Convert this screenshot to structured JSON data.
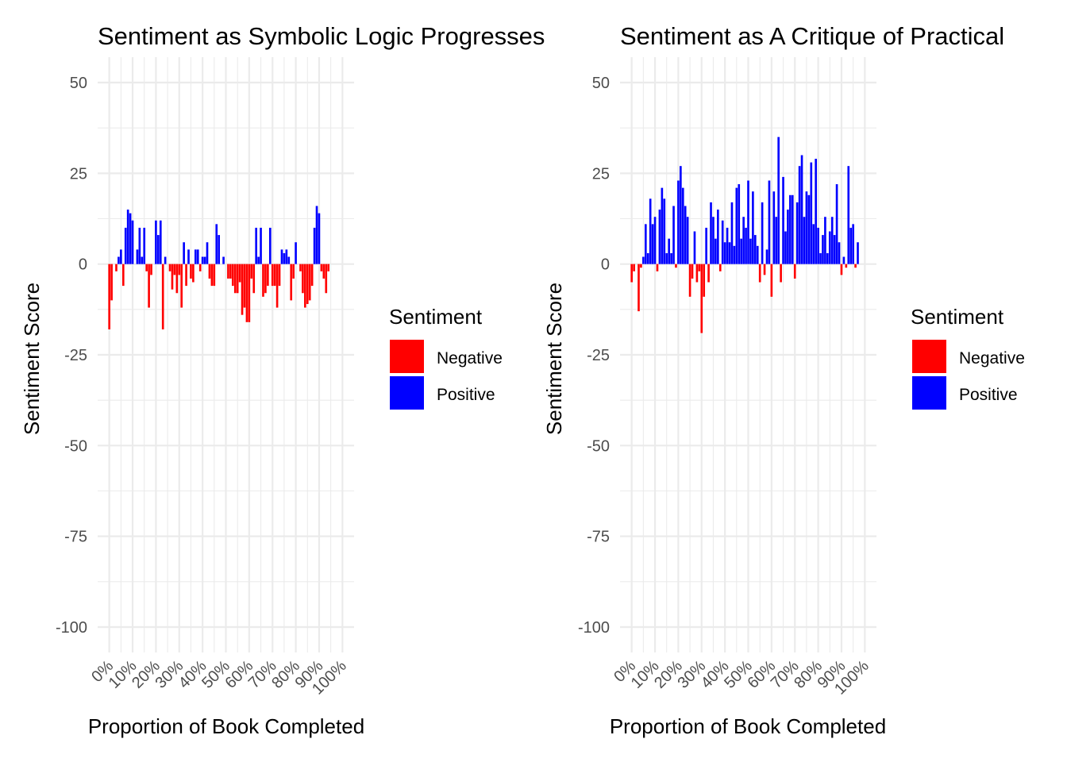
{
  "legend": {
    "title": "Sentiment",
    "items": [
      {
        "label": "Negative",
        "color": "#ff0000"
      },
      {
        "label": "Positive",
        "color": "#0000ff"
      }
    ]
  },
  "colors": {
    "negative": "#ff0000",
    "positive": "#0000ff"
  },
  "chart_data": [
    {
      "type": "bar",
      "title": "Sentiment as Symbolic Logic Progresses",
      "xlabel": "Proportion of Book Completed",
      "ylabel": "Sentiment Score",
      "x_ticks": [
        "0%",
        "10%",
        "20%",
        "30%",
        "40%",
        "50%",
        "60%",
        "70%",
        "80%",
        "90%",
        "100%"
      ],
      "y_ticks": [
        "50",
        "25",
        "0",
        "-25",
        "-50",
        "-75",
        "-100"
      ],
      "ylim": [
        -107,
        57
      ],
      "xlim": [
        -5,
        105
      ],
      "grid": true,
      "legend_position": "right",
      "series": [
        {
          "x": [
            0,
            1,
            2,
            3,
            4,
            5,
            6,
            7,
            8,
            9,
            10,
            11,
            12,
            13,
            14,
            15,
            16,
            17,
            18,
            19,
            20,
            21,
            22,
            23,
            24,
            25,
            26,
            27,
            28,
            29,
            30,
            31,
            32,
            33,
            34,
            35,
            36,
            37,
            38,
            39,
            40,
            41,
            42,
            43,
            44,
            45,
            46,
            47,
            48,
            49,
            50,
            51,
            52,
            53,
            54,
            55,
            56,
            57,
            58,
            59,
            60,
            61,
            62,
            63,
            64,
            65,
            66,
            67,
            68,
            69,
            70,
            71,
            72,
            73,
            74,
            75,
            76,
            77,
            78,
            79,
            80,
            81,
            82,
            83,
            84,
            85,
            86,
            87,
            88,
            89,
            90,
            91,
            92,
            93,
            94,
            95,
            96,
            97,
            98,
            99,
            100
          ],
          "values": [
            -18,
            -10,
            0,
            -2,
            2,
            4,
            -6,
            10,
            15,
            14,
            12,
            0,
            4,
            10,
            2,
            10,
            -2,
            -12,
            -3,
            0,
            12,
            8,
            12,
            -18,
            2,
            0,
            -2,
            -7,
            -3,
            -8,
            -3,
            -12,
            6,
            -6,
            4,
            -4,
            -5,
            4,
            4,
            -2,
            2,
            2,
            6,
            -4,
            -6,
            -6,
            11,
            8,
            0,
            2,
            0,
            -4,
            -4,
            -6,
            -8,
            -8,
            -5,
            -14,
            -12,
            -16,
            -16,
            -4,
            -8,
            10,
            2,
            10,
            -9,
            -8,
            -6,
            10,
            -6,
            -6,
            -12,
            -6,
            4,
            3,
            4,
            2,
            -10,
            -4,
            6,
            0,
            -2,
            -8,
            -12,
            -11,
            -10,
            -6,
            10,
            16,
            14,
            -2,
            -4,
            -8,
            -2,
            0,
            0,
            0,
            0,
            0,
            0
          ]
        }
      ]
    },
    {
      "type": "bar",
      "title": "Sentiment as A Critique of Practical",
      "xlabel": "Proportion of Book Completed",
      "ylabel": "Sentiment Score",
      "x_ticks": [
        "0%",
        "10%",
        "20%",
        "30%",
        "40%",
        "50%",
        "60%",
        "70%",
        "80%",
        "90%",
        "100%"
      ],
      "y_ticks": [
        "50",
        "25",
        "0",
        "-25",
        "-50",
        "-75",
        "-100"
      ],
      "ylim": [
        -107,
        57
      ],
      "xlim": [
        -5,
        105
      ],
      "grid": true,
      "legend_position": "right",
      "series": [
        {
          "x": [
            0,
            1,
            2,
            3,
            4,
            5,
            6,
            7,
            8,
            9,
            10,
            11,
            12,
            13,
            14,
            15,
            16,
            17,
            18,
            19,
            20,
            21,
            22,
            23,
            24,
            25,
            26,
            27,
            28,
            29,
            30,
            31,
            32,
            33,
            34,
            35,
            36,
            37,
            38,
            39,
            40,
            41,
            42,
            43,
            44,
            45,
            46,
            47,
            48,
            49,
            50,
            51,
            52,
            53,
            54,
            55,
            56,
            57,
            58,
            59,
            60,
            61,
            62,
            63,
            64,
            65,
            66,
            67,
            68,
            69,
            70,
            71,
            72,
            73,
            74,
            75,
            76,
            77,
            78,
            79,
            80,
            81,
            82,
            83,
            84,
            85,
            86,
            87,
            88,
            89,
            90,
            91,
            92,
            93,
            94,
            95,
            96,
            97,
            98,
            99,
            100
          ],
          "values": [
            -5,
            -2,
            0,
            -13,
            -1,
            2,
            11,
            3,
            18,
            11,
            13,
            -2,
            15,
            21,
            18,
            3,
            7,
            3,
            16,
            -1,
            23,
            27,
            21,
            16,
            13,
            -9,
            -4,
            9,
            -5,
            -2,
            -19,
            -9,
            10,
            -5,
            17,
            13,
            7,
            15,
            -2,
            12,
            6,
            10,
            6,
            17,
            5,
            21,
            22,
            7,
            13,
            10,
            23,
            7,
            20,
            8,
            5,
            -5,
            17,
            -3,
            4,
            23,
            -9,
            20,
            13,
            35,
            -5,
            24,
            9,
            15,
            19,
            19,
            -4,
            17,
            27,
            30,
            13,
            20,
            19,
            28,
            11,
            29,
            10,
            3,
            8,
            13,
            3,
            9,
            13,
            8,
            22,
            6,
            -3,
            2,
            -1,
            27,
            10,
            11,
            -1,
            6,
            0,
            0,
            0
          ]
        }
      ]
    }
  ]
}
